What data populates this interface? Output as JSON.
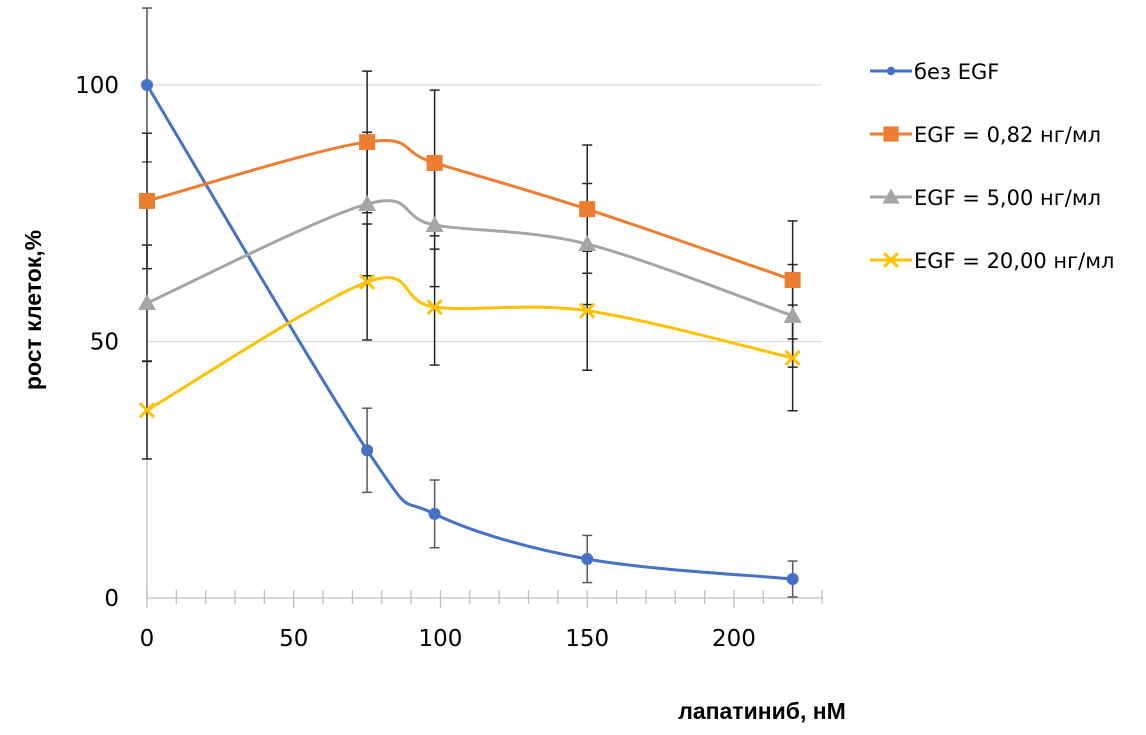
{
  "chart_data": {
    "type": "line",
    "title": "",
    "xlabel": "лапатиниб, нМ",
    "ylabel": "рост клеток,%",
    "xlim": [
      0,
      230
    ],
    "ylim": [
      0,
      115
    ],
    "x_ticks": [
      0,
      50,
      100,
      150,
      200
    ],
    "x_tick_labels": [
      "0",
      "50",
      "100",
      "150",
      "200"
    ],
    "x_minor_step": 10,
    "y_ticks": [
      0,
      50,
      100
    ],
    "y_tick_labels": [
      "0",
      "50",
      "100"
    ],
    "grid": "horizontal major",
    "smooth": true,
    "legend_position": "right",
    "x": [
      0,
      75,
      98,
      150,
      220
    ],
    "series": [
      {
        "name": "без EGF",
        "color": "#4472C4",
        "marker": "circle",
        "values": [
          100,
          28.8,
          16.4,
          7.6,
          3.7
        ],
        "errors": [
          15,
          8.2,
          6.6,
          4.6,
          3.5
        ]
      },
      {
        "name": "EGF = 0,82 нг/мл",
        "color": "#ED7D31",
        "marker": "square",
        "values": [
          77.4,
          88.9,
          84.8,
          75.8,
          62.0
        ],
        "errors": [
          13.2,
          13.8,
          14.2,
          12.5,
          11.5
        ]
      },
      {
        "name": "EGF = 5,00 нг/мл",
        "color": "#A5A5A5",
        "marker": "triangle",
        "values": [
          57.5,
          76.8,
          72.7,
          69.0,
          55.0
        ],
        "errors": [
          11.3,
          14,
          12,
          11.8,
          10
        ]
      },
      {
        "name": "EGF = 20,00 нг/мл",
        "color": "#FFC000",
        "marker": "x",
        "values": [
          36.6,
          61.6,
          56.7,
          56.0,
          46.8
        ],
        "errors": [
          9.5,
          11.3,
          11.3,
          11.6,
          10.3
        ]
      }
    ]
  }
}
